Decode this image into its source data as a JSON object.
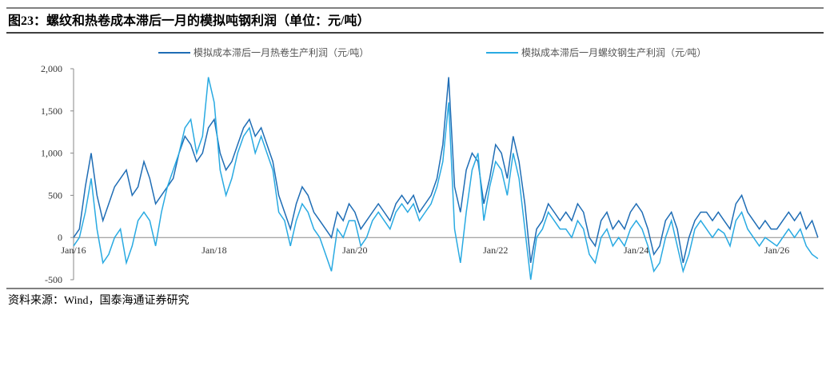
{
  "header": {
    "title": "图23：螺纹和热卷成本滞后一月的模拟吨钢利润（单位：元/吨）"
  },
  "source": "资料来源：Wind，国泰海通证券研究",
  "chart_data": {
    "type": "line",
    "categories": [
      "Jan/16",
      null,
      null,
      null,
      null,
      null,
      null,
      null,
      null,
      null,
      null,
      null,
      null,
      null,
      null,
      null,
      null,
      null,
      null,
      null,
      null,
      null,
      null,
      null,
      "Jan/18",
      null,
      null,
      null,
      null,
      null,
      null,
      null,
      null,
      null,
      null,
      null,
      null,
      null,
      null,
      null,
      null,
      null,
      null,
      null,
      null,
      null,
      null,
      null,
      "Jan/20",
      null,
      null,
      null,
      null,
      null,
      null,
      null,
      null,
      null,
      null,
      null,
      null,
      null,
      null,
      null,
      null,
      null,
      null,
      null,
      null,
      null,
      null,
      null,
      "Jan/22",
      null,
      null,
      null,
      null,
      null,
      null,
      null,
      null,
      null,
      null,
      null,
      null,
      null,
      null,
      null,
      null,
      null,
      null,
      null,
      null,
      null,
      null,
      null,
      "Jan/24",
      null,
      null,
      null,
      null,
      null,
      null,
      null,
      null,
      null,
      null,
      null,
      null,
      null,
      null,
      null,
      null,
      null,
      null,
      null,
      null,
      null,
      null,
      null,
      "Jan/26",
      null,
      null,
      null,
      null,
      null,
      null,
      null
    ],
    "series": [
      {
        "name": "模拟成本滞后一月热卷生产利润（元/吨）",
        "color": "#1f6db5",
        "values": [
          0,
          100,
          600,
          1000,
          500,
          200,
          400,
          600,
          700,
          800,
          500,
          600,
          900,
          700,
          400,
          500,
          600,
          700,
          1000,
          1200,
          1100,
          900,
          1000,
          1300,
          1400,
          1000,
          800,
          900,
          1100,
          1300,
          1400,
          1200,
          1300,
          1100,
          900,
          500,
          300,
          100,
          400,
          600,
          500,
          300,
          200,
          100,
          0,
          300,
          200,
          400,
          300,
          100,
          200,
          300,
          400,
          300,
          200,
          400,
          500,
          400,
          500,
          300,
          400,
          500,
          700,
          1100,
          1900,
          600,
          300,
          800,
          1000,
          900,
          400,
          700,
          1100,
          1000,
          700,
          1200,
          900,
          400,
          -300,
          100,
          200,
          400,
          300,
          200,
          300,
          200,
          400,
          300,
          0,
          -100,
          200,
          300,
          100,
          200,
          100,
          300,
          400,
          300,
          100,
          -200,
          -100,
          200,
          300,
          100,
          -300,
          0,
          200,
          300,
          300,
          200,
          300,
          200,
          100,
          400,
          500,
          300,
          200,
          100,
          200,
          100,
          100,
          200,
          300,
          200,
          300,
          100,
          200,
          0
        ]
      },
      {
        "name": "模拟成本滞后一月螺纹钢生产利润（元/吨）",
        "color": "#29aae2",
        "values": [
          -100,
          0,
          300,
          700,
          100,
          -300,
          -200,
          0,
          100,
          -300,
          -100,
          200,
          300,
          200,
          -100,
          300,
          600,
          800,
          1000,
          1300,
          1400,
          1000,
          1200,
          1900,
          1600,
          800,
          500,
          700,
          1000,
          1200,
          1300,
          1000,
          1200,
          1000,
          800,
          300,
          200,
          -100,
          200,
          400,
          300,
          100,
          0,
          -200,
          -400,
          100,
          0,
          200,
          200,
          -100,
          0,
          200,
          300,
          200,
          100,
          300,
          400,
          300,
          400,
          200,
          300,
          400,
          600,
          900,
          1600,
          100,
          -300,
          300,
          800,
          1000,
          200,
          600,
          900,
          800,
          500,
          1000,
          700,
          100,
          -500,
          0,
          100,
          300,
          200,
          100,
          100,
          0,
          200,
          100,
          -200,
          -300,
          0,
          100,
          -100,
          0,
          -100,
          100,
          200,
          100,
          -100,
          -400,
          -300,
          0,
          200,
          -100,
          -400,
          -200,
          100,
          200,
          100,
          0,
          100,
          50,
          -100,
          200,
          300,
          100,
          0,
          -100,
          0,
          -50,
          -100,
          0,
          100,
          0,
          100,
          -100,
          -200,
          -250
        ]
      }
    ],
    "ylim": [
      -500,
      2000
    ],
    "yticks": [
      {
        "value": -500,
        "label": "-500"
      },
      0,
      500,
      {
        "value": 1000,
        "label": "1,000"
      },
      {
        "value": 1500,
        "label": "1,500"
      },
      {
        "value": 2000,
        "label": "2,000"
      }
    ]
  }
}
